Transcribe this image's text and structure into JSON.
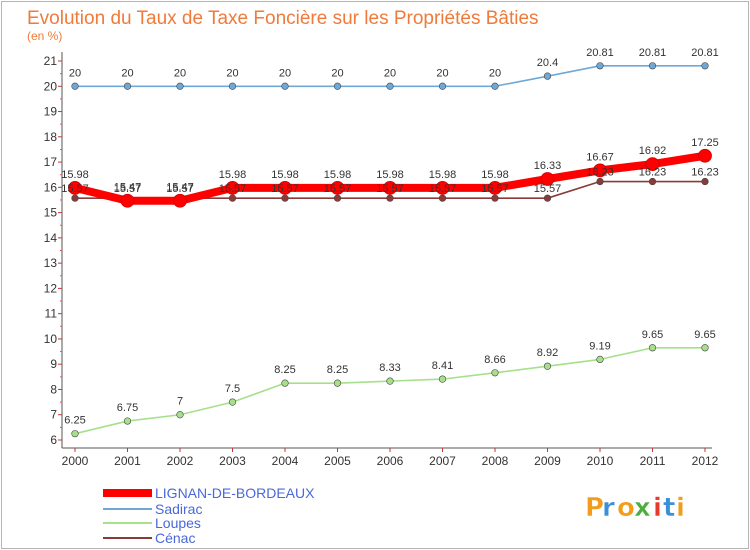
{
  "chart_data": {
    "type": "line",
    "title": "Evolution du Taux de Taxe Foncière sur les Propriétés Bâties",
    "subtitle": "(en %)",
    "xlabel": "",
    "ylabel": "",
    "categories": [
      "2000",
      "2001",
      "2002",
      "2003",
      "2004",
      "2005",
      "2006",
      "2007",
      "2008",
      "2009",
      "2010",
      "2011",
      "2012"
    ],
    "yticks": [
      "6",
      "7",
      "8",
      "9",
      "10",
      "11",
      "12",
      "13",
      "14",
      "15",
      "16",
      "17",
      "18",
      "19",
      "20",
      "21"
    ],
    "ylim": [
      6,
      21
    ],
    "grid": false,
    "legend": "bottom-left",
    "series": [
      {
        "name": "LIGNAN-DE-BORDEAUX",
        "color": "#ff0000",
        "values": [
          15.98,
          15.47,
          15.47,
          15.98,
          15.98,
          15.98,
          15.98,
          15.98,
          15.98,
          16.33,
          16.67,
          16.92,
          17.25
        ],
        "labels": [
          "15.98",
          "15.47",
          "15.47",
          "15.98",
          "15.98",
          "15.98",
          "15.98",
          "15.98",
          "15.98",
          "16.33",
          "16.67",
          "16.92",
          "17.25"
        ]
      },
      {
        "name": "Sadirac",
        "color": "#6fa8d6",
        "values": [
          20,
          20,
          20,
          20,
          20,
          20,
          20,
          20,
          20,
          20.4,
          20.81,
          20.81,
          20.81
        ],
        "labels": [
          "20",
          "20",
          "20",
          "20",
          "20",
          "20",
          "20",
          "20",
          "20",
          "20.4",
          "20.81",
          "20.81",
          "20.81"
        ]
      },
      {
        "name": "Loupes",
        "color": "#a6e08a",
        "values": [
          6.25,
          6.75,
          7,
          7.5,
          8.25,
          8.25,
          8.33,
          8.41,
          8.66,
          8.92,
          9.19,
          9.65,
          9.65
        ],
        "labels": [
          "6.25",
          "6.75",
          "7",
          "7.5",
          "8.25",
          "8.25",
          "8.33",
          "8.41",
          "8.66",
          "8.92",
          "9.19",
          "9.65",
          "9.65"
        ]
      },
      {
        "name": "Cénac",
        "color": "#8b3a3a",
        "values": [
          15.57,
          15.57,
          15.57,
          15.57,
          15.57,
          15.57,
          15.57,
          15.57,
          15.57,
          15.57,
          16.23,
          16.23,
          16.23
        ],
        "labels": [
          "15.57",
          "15.57",
          "15.57",
          "15.57",
          "15.57",
          "15.57",
          "15.57",
          "15.57",
          "15.57",
          "15.57",
          "16.23",
          "16.23",
          "16.23"
        ]
      }
    ]
  },
  "logo": {
    "text": "Proxiti",
    "letters": [
      "P",
      "r",
      "o",
      "x",
      "i",
      "t",
      "i"
    ],
    "colors": [
      "#f39c1a",
      "#3a8fd8",
      "#f39c1a",
      "#4cae3c",
      "#e8392b",
      "#3a8fd8",
      "#f39c1a"
    ]
  }
}
